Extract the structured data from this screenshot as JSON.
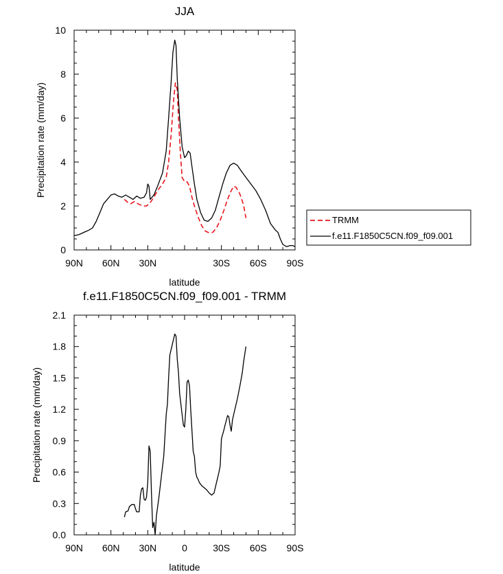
{
  "chart_data": [
    {
      "type": "line",
      "title": "JJA",
      "xlabel": "latitude",
      "ylabel": "Precipitation rate (mm/day)",
      "xlim": [
        90,
        -90
      ],
      "ylim": [
        0,
        10
      ],
      "x_ticks": [
        90,
        60,
        30,
        0,
        -30,
        -60,
        -90
      ],
      "x_tick_labels": [
        "90N",
        "60N",
        "30N",
        "",
        "30S",
        "60S",
        "90S"
      ],
      "y_ticks": [
        0,
        2,
        4,
        6,
        8,
        10
      ],
      "y_tick_labels": [
        "0",
        "2",
        "4",
        "6",
        "8",
        "10"
      ],
      "legend": [
        "TRMM",
        "f.e11.F1850C5CN.f09_f09.001"
      ],
      "legend_position": "right",
      "series": [
        {
          "name": "TRMM",
          "color": "#e8141b",
          "dash": true,
          "points": [
            [
              49,
              2.3
            ],
            [
              46,
              2.15
            ],
            [
              44,
              2.1
            ],
            [
              41,
              2.2
            ],
            [
              38,
              2.1
            ],
            [
              34,
              2.0
            ],
            [
              31,
              2.0
            ],
            [
              28,
              2.15
            ],
            [
              25,
              2.4
            ],
            [
              22,
              2.7
            ],
            [
              18,
              3.0
            ],
            [
              15,
              3.3
            ],
            [
              13,
              4.0
            ],
            [
              11,
              5.2
            ],
            [
              9,
              6.8
            ],
            [
              7.5,
              7.6
            ],
            [
              6,
              7.3
            ],
            [
              5,
              6.0
            ],
            [
              3.5,
              4.5
            ],
            [
              2,
              3.3
            ],
            [
              0,
              3.1
            ],
            [
              -2,
              3.1
            ],
            [
              -4,
              2.9
            ],
            [
              -6,
              2.4
            ],
            [
              -8,
              2.0
            ],
            [
              -11,
              1.5
            ],
            [
              -14,
              1.1
            ],
            [
              -17,
              0.85
            ],
            [
              -20,
              0.78
            ],
            [
              -23,
              0.8
            ],
            [
              -26,
              1.0
            ],
            [
              -29,
              1.35
            ],
            [
              -32,
              1.8
            ],
            [
              -35,
              2.3
            ],
            [
              -38,
              2.7
            ],
            [
              -40,
              2.9
            ],
            [
              -42,
              2.85
            ],
            [
              -45,
              2.55
            ],
            [
              -48,
              2.05
            ],
            [
              -50,
              1.45
            ]
          ]
        },
        {
          "name": "f.e11.F1850C5CN.f09_f09.001",
          "color": "#000000",
          "dash": false,
          "points": [
            [
              90,
              0.65
            ],
            [
              86,
              0.7
            ],
            [
              82,
              0.8
            ],
            [
              78,
              0.9
            ],
            [
              75,
              1.0
            ],
            [
              72,
              1.3
            ],
            [
              69,
              1.7
            ],
            [
              66,
              2.1
            ],
            [
              63,
              2.3
            ],
            [
              60,
              2.5
            ],
            [
              57,
              2.55
            ],
            [
              54,
              2.45
            ],
            [
              51,
              2.4
            ],
            [
              48,
              2.5
            ],
            [
              45,
              2.4
            ],
            [
              42,
              2.3
            ],
            [
              39,
              2.45
            ],
            [
              36,
              2.35
            ],
            [
              33,
              2.4
            ],
            [
              31,
              2.6
            ],
            [
              30,
              3.0
            ],
            [
              29,
              2.9
            ],
            [
              28,
              2.3
            ],
            [
              25,
              2.5
            ],
            [
              22,
              2.9
            ],
            [
              18,
              3.5
            ],
            [
              15,
              4.5
            ],
            [
              13,
              6.0
            ],
            [
              11,
              7.6
            ],
            [
              9.5,
              9.0
            ],
            [
              8,
              9.55
            ],
            [
              7,
              9.3
            ],
            [
              6,
              7.8
            ],
            [
              4,
              6.0
            ],
            [
              2,
              4.7
            ],
            [
              0,
              4.2
            ],
            [
              -1.5,
              4.3
            ],
            [
              -3,
              4.5
            ],
            [
              -4.5,
              4.4
            ],
            [
              -6,
              3.8
            ],
            [
              -8,
              3.0
            ],
            [
              -10,
              2.3
            ],
            [
              -13,
              1.7
            ],
            [
              -16,
              1.35
            ],
            [
              -19,
              1.3
            ],
            [
              -22,
              1.45
            ],
            [
              -25,
              1.8
            ],
            [
              -28,
              2.4
            ],
            [
              -31,
              3.0
            ],
            [
              -34,
              3.5
            ],
            [
              -37,
              3.85
            ],
            [
              -40,
              3.95
            ],
            [
              -43,
              3.85
            ],
            [
              -46,
              3.6
            ],
            [
              -50,
              3.3
            ],
            [
              -54,
              3.0
            ],
            [
              -58,
              2.7
            ],
            [
              -62,
              2.3
            ],
            [
              -66,
              1.8
            ],
            [
              -70,
              1.2
            ],
            [
              -74,
              0.9
            ],
            [
              -76,
              0.8
            ],
            [
              -78,
              0.5
            ],
            [
              -80,
              0.25
            ],
            [
              -83,
              0.15
            ],
            [
              -86,
              0.2
            ],
            [
              -88,
              0.2
            ],
            [
              -90,
              0.15
            ]
          ]
        }
      ]
    },
    {
      "type": "line",
      "title": "f.e11.F1850C5CN.f09_f09.001 - TRMM",
      "xlabel": "latitude",
      "ylabel": "Precipitation rate (mm/day)",
      "xlim": [
        90,
        -90
      ],
      "ylim": [
        0,
        2.1
      ],
      "x_ticks": [
        90,
        60,
        30,
        0,
        -30,
        -60,
        -90
      ],
      "x_tick_labels": [
        "90N",
        "60N",
        "30N",
        "0",
        "30S",
        "60S",
        "90S"
      ],
      "y_ticks": [
        0,
        0.3,
        0.6,
        0.9,
        1.2,
        1.5,
        1.8,
        2.1
      ],
      "y_tick_labels": [
        "0.0",
        "0.3",
        "0.6",
        "0.9",
        "1.2",
        "1.5",
        "1.8",
        "2.1"
      ],
      "series": [
        {
          "name": "f.e11.F1850C5CN.f09_f09.001 - TRMM",
          "color": "#000000",
          "dash": false,
          "points": [
            [
              49,
              0.17
            ],
            [
              48,
              0.22
            ],
            [
              46,
              0.23
            ],
            [
              45,
              0.27
            ],
            [
              43,
              0.29
            ],
            [
              41,
              0.29
            ],
            [
              40,
              0.25
            ],
            [
              39,
              0.22
            ],
            [
              37,
              0.22
            ],
            [
              36,
              0.38
            ],
            [
              35,
              0.44
            ],
            [
              34,
              0.45
            ],
            [
              33,
              0.34
            ],
            [
              32,
              0.33
            ],
            [
              31,
              0.36
            ],
            [
              30,
              0.5
            ],
            [
              29,
              0.85
            ],
            [
              28,
              0.8
            ],
            [
              27,
              0.4
            ],
            [
              26,
              0.07
            ],
            [
              25,
              0.12
            ],
            [
              24,
              0.0
            ],
            [
              23,
              0.18
            ],
            [
              21,
              0.35
            ],
            [
              19,
              0.55
            ],
            [
              17,
              0.75
            ],
            [
              15,
              1.15
            ],
            [
              14,
              1.25
            ],
            [
              13,
              1.5
            ],
            [
              12,
              1.72
            ],
            [
              10,
              1.82
            ],
            [
              8,
              1.92
            ],
            [
              7,
              1.9
            ],
            [
              6,
              1.68
            ],
            [
              5,
              1.55
            ],
            [
              4,
              1.35
            ],
            [
              2,
              1.15
            ],
            [
              1,
              1.05
            ],
            [
              0,
              1.03
            ],
            [
              -1,
              1.2
            ],
            [
              -2,
              1.46
            ],
            [
              -3,
              1.48
            ],
            [
              -4,
              1.42
            ],
            [
              -5,
              1.2
            ],
            [
              -6,
              1.0
            ],
            [
              -7,
              0.8
            ],
            [
              -8,
              0.75
            ],
            [
              -9,
              0.6
            ],
            [
              -10,
              0.55
            ],
            [
              -11,
              0.53
            ],
            [
              -12,
              0.5
            ],
            [
              -14,
              0.47
            ],
            [
              -16,
              0.45
            ],
            [
              -18,
              0.43
            ],
            [
              -20,
              0.4
            ],
            [
              -22,
              0.38
            ],
            [
              -24,
              0.4
            ],
            [
              -26,
              0.5
            ],
            [
              -28,
              0.6
            ],
            [
              -29,
              0.66
            ],
            [
              -30,
              0.92
            ],
            [
              -32,
              1.0
            ],
            [
              -33,
              1.05
            ],
            [
              -35,
              1.14
            ],
            [
              -36,
              1.13
            ],
            [
              -37,
              1.05
            ],
            [
              -38,
              0.99
            ],
            [
              -39,
              1.1
            ],
            [
              -41,
              1.2
            ],
            [
              -43,
              1.3
            ],
            [
              -45,
              1.42
            ],
            [
              -47,
              1.55
            ],
            [
              -48,
              1.65
            ],
            [
              -50,
              1.8
            ]
          ]
        }
      ]
    }
  ]
}
